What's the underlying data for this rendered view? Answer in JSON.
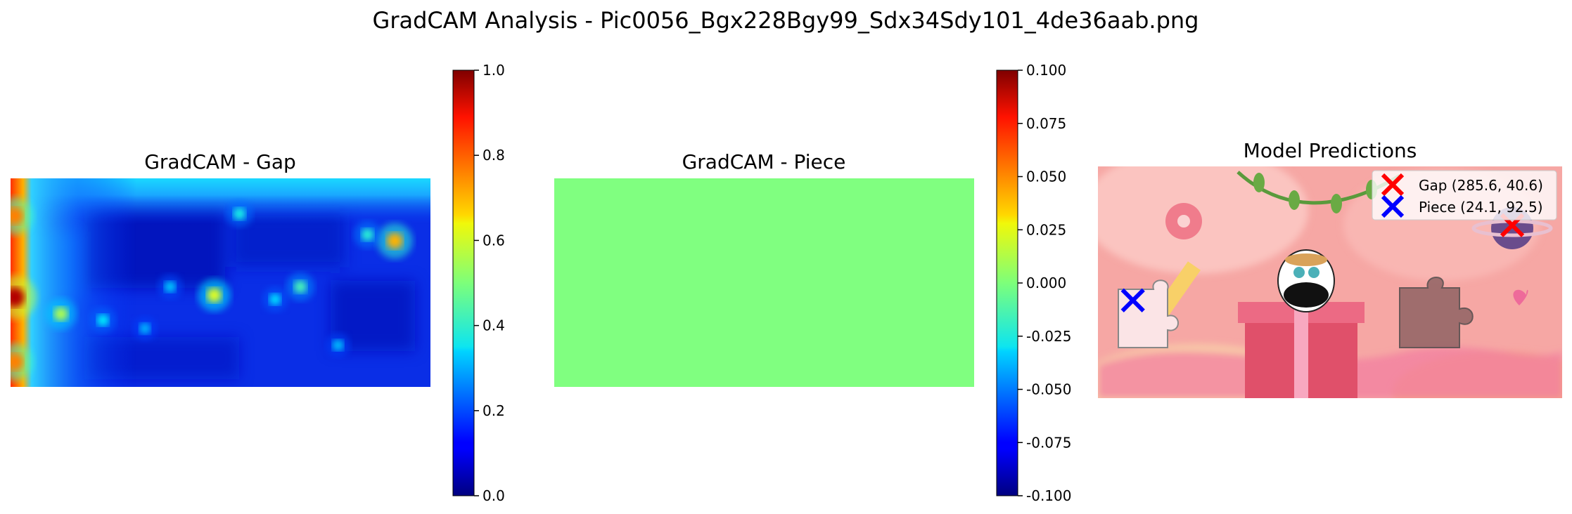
{
  "figure": {
    "title": "GradCAM Analysis - Pic0056_Bgx228Bgy99_Sdx34Sdy101_4de36aab.png"
  },
  "chart_data": [
    {
      "type": "heatmap",
      "title": "GradCAM - Gap",
      "colormap": "jet",
      "colorbar": {
        "ticks": [
          "0.0",
          "0.2",
          "0.4",
          "0.6",
          "0.8",
          "1.0"
        ],
        "range": [
          0.0,
          1.0
        ]
      },
      "axes": "off",
      "hotspots": [
        {
          "x": 0.01,
          "y": 0.57,
          "value": 0.95
        },
        {
          "x": 0.01,
          "y": 0.18,
          "value": 0.75
        },
        {
          "x": 0.01,
          "y": 0.88,
          "value": 0.75
        },
        {
          "x": 0.915,
          "y": 0.3,
          "value": 0.7
        },
        {
          "x": 0.485,
          "y": 0.56,
          "value": 0.6
        },
        {
          "x": 0.12,
          "y": 0.65,
          "value": 0.55
        },
        {
          "x": 0.69,
          "y": 0.52,
          "value": 0.45
        },
        {
          "x": 0.545,
          "y": 0.17,
          "value": 0.4
        },
        {
          "x": 0.85,
          "y": 0.27,
          "value": 0.42
        },
        {
          "x": 0.22,
          "y": 0.68,
          "value": 0.38
        },
        {
          "x": 0.63,
          "y": 0.58,
          "value": 0.36
        },
        {
          "x": 0.38,
          "y": 0.52,
          "value": 0.34
        },
        {
          "x": 0.78,
          "y": 0.8,
          "value": 0.33
        },
        {
          "x": 0.32,
          "y": 0.72,
          "value": 0.32
        }
      ]
    },
    {
      "type": "heatmap",
      "title": "GradCAM - Piece",
      "colormap": "jet",
      "colorbar": {
        "ticks": [
          "-0.100",
          "-0.075",
          "-0.050",
          "-0.025",
          "0.000",
          "0.025",
          "0.050",
          "0.075",
          "0.100"
        ],
        "range": [
          -0.1,
          0.1
        ]
      },
      "axes": "off",
      "uniform_value": 0.0
    },
    {
      "type": "scatter",
      "title": "Model Predictions",
      "axes": "off",
      "image": {
        "width_units": 320,
        "height_units": 160,
        "background": "pink illustration: bird on a gift box, puzzle-piece cutout, planet, flowers"
      },
      "legend_position": "top-right",
      "series": [
        {
          "name": "Gap (285.6, 40.6)",
          "marker": "x",
          "color": "#ff0000",
          "x": 285.6,
          "y": 40.6
        },
        {
          "name": "Piece (24.1, 92.5)",
          "marker": "x",
          "color": "#0000ff",
          "x": 24.1,
          "y": 92.5
        }
      ]
    }
  ]
}
